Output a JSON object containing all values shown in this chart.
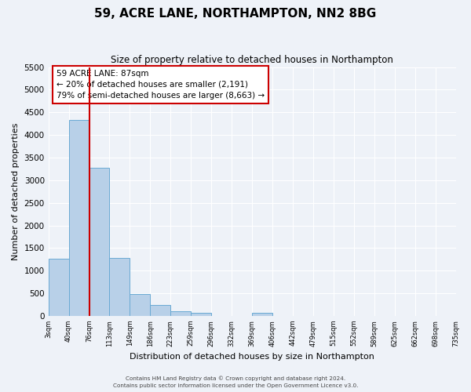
{
  "title": "59, ACRE LANE, NORTHAMPTON, NN2 8BG",
  "subtitle": "Size of property relative to detached houses in Northampton",
  "xlabel": "Distribution of detached houses by size in Northampton",
  "ylabel": "Number of detached properties",
  "footer_line1": "Contains HM Land Registry data © Crown copyright and database right 2024.",
  "footer_line2": "Contains public sector information licensed under the Open Government Licence v3.0.",
  "bin_labels": [
    "3sqm",
    "40sqm",
    "76sqm",
    "113sqm",
    "149sqm",
    "186sqm",
    "223sqm",
    "259sqm",
    "296sqm",
    "332sqm",
    "369sqm",
    "406sqm",
    "442sqm",
    "479sqm",
    "515sqm",
    "552sqm",
    "589sqm",
    "625sqm",
    "662sqm",
    "698sqm",
    "735sqm"
  ],
  "bar_heights": [
    1270,
    4330,
    3270,
    1280,
    480,
    240,
    100,
    70,
    0,
    0,
    60,
    0,
    0,
    0,
    0,
    0,
    0,
    0,
    0,
    0
  ],
  "bar_color": "#b8d0e8",
  "bar_edge_color": "#6aaad4",
  "vline_x_index": 2,
  "vline_color": "#cc0000",
  "annotation_title": "59 ACRE LANE: 87sqm",
  "annotation_line1": "← 20% of detached houses are smaller (2,191)",
  "annotation_line2": "79% of semi-detached houses are larger (8,663) →",
  "annotation_box_color": "#ffffff",
  "annotation_border_color": "#cc0000",
  "ylim": [
    0,
    5500
  ],
  "yticks": [
    0,
    500,
    1000,
    1500,
    2000,
    2500,
    3000,
    3500,
    4000,
    4500,
    5000,
    5500
  ],
  "bg_color": "#eef2f8",
  "grid_color": "#ffffff",
  "title_fontsize": 11,
  "subtitle_fontsize": 8.5
}
